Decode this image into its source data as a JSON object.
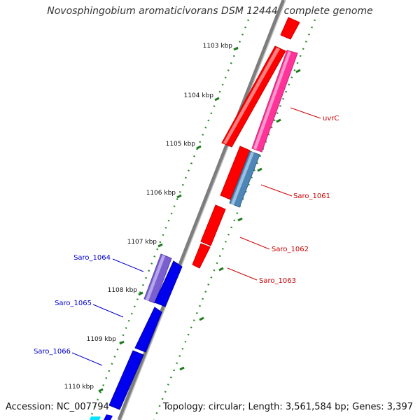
{
  "title": "Novosphingobium aromaticivorans DSM 12444, complete genome",
  "footer": {
    "accession": "Accession: NC_007794",
    "info": "Topology: circular; Length: 3,561,584 bp; Genes: 3,397"
  },
  "ticks": [
    "1103 kbp",
    "1104 kbp",
    "1105 kbp",
    "1106 kbp",
    "1107 kbp",
    "1108 kbp",
    "1109 kbp",
    "1110 kbp"
  ],
  "forward_labels": [
    "uvrC",
    "Saro_1061",
    "Saro_1062",
    "Saro_1063"
  ],
  "reverse_labels": [
    "Saro_1064",
    "Saro_1065",
    "Saro_1066"
  ],
  "colors": {
    "forward_cds": "#ff0000",
    "reverse_cds": "#0000ee",
    "uvrC": "#ff3399",
    "Saro_1061": "#4f86b8",
    "Saro_1064": "#7a5fd0",
    "backbone": "#888888",
    "ticks": "#228b22",
    "forward_label_text": "#cc0000",
    "reverse_label_text": "#0000cc"
  }
}
